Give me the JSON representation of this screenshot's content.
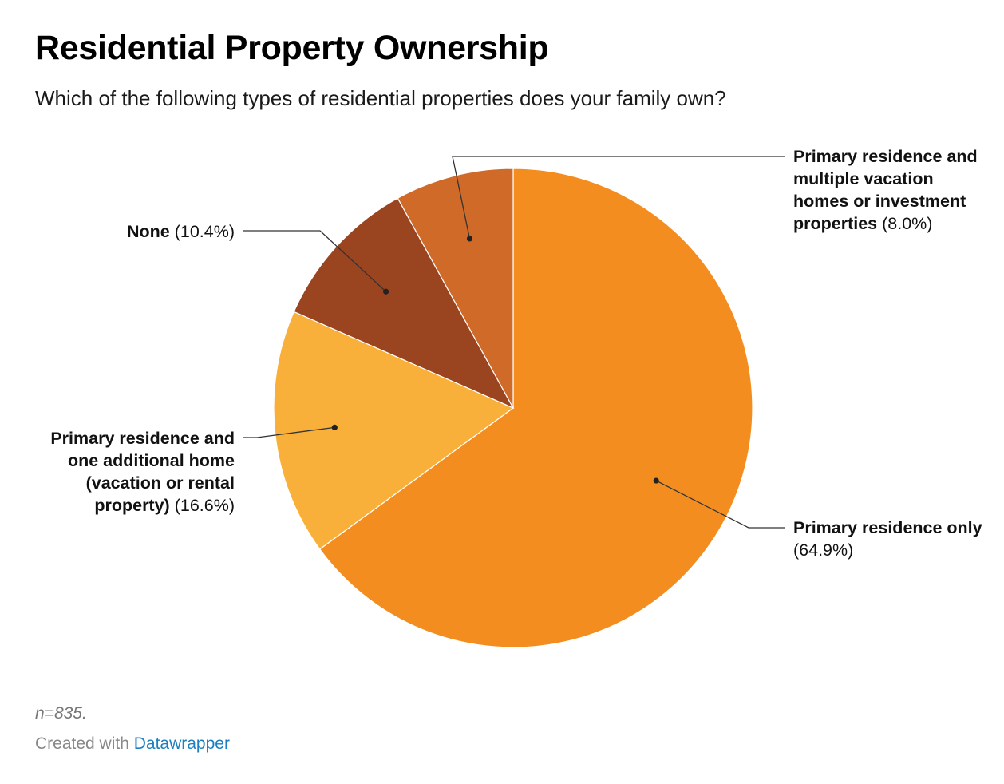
{
  "chart_data": {
    "type": "pie",
    "title": "Residential Property Ownership",
    "subtitle": "Which of the following types of residential properties does your family own?",
    "slices": [
      {
        "label": "Primary residence only",
        "value": 64.9,
        "display": "(64.9%)",
        "color": "#f48d20"
      },
      {
        "label": "Primary residence and one additional home (vacation or rental property)",
        "value": 16.6,
        "display": "(16.6%)",
        "color": "#f9b03a"
      },
      {
        "label": "None",
        "value": 10.4,
        "display": "(10.4%)",
        "color": "#9b4420"
      },
      {
        "label": "Primary residence and multiple vacation homes or investment properties",
        "value": 8.0,
        "display": "(8.0%)",
        "color": "#cf6a28"
      }
    ],
    "note": "n=835.",
    "credit_prefix": "Created with",
    "credit_link": "Datawrapper"
  }
}
